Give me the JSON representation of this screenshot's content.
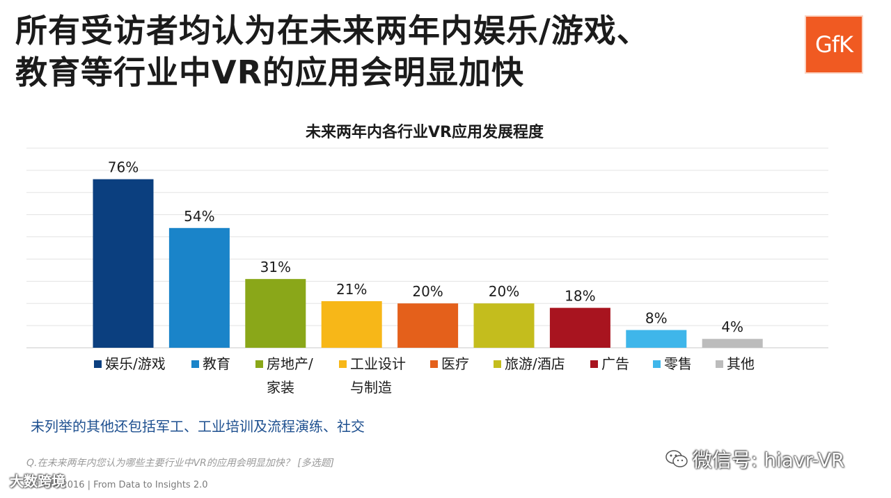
{
  "headline": {
    "line1": "所有受访者均认为在未来两年内娱乐/游戏、",
    "line2": "教育等行业中VR的应用会明显加快"
  },
  "logo": {
    "text": "GfK",
    "color": "#f05a22"
  },
  "chart_data": {
    "type": "bar",
    "title": "未来两年内各行业VR应用发展程度",
    "categories": [
      "娱乐/游戏",
      "教育",
      "房地产/家装",
      "工业设计与制造",
      "医疗",
      "旅游/酒店",
      "广告",
      "零售",
      "其他"
    ],
    "values": [
      76,
      54,
      31,
      21,
      20,
      20,
      18,
      8,
      4
    ],
    "value_labels": [
      "76%",
      "54%",
      "31%",
      "21%",
      "20%",
      "20%",
      "18%",
      "8%",
      "4%"
    ],
    "colors": [
      "#0b3f7f",
      "#1a84c9",
      "#8aa719",
      "#f7b718",
      "#e4601b",
      "#c4bd1d",
      "#a8141f",
      "#3fb6ea",
      "#bcbcbc"
    ],
    "ylim": [
      0,
      90
    ],
    "grid": true,
    "legend": [
      {
        "line1": "娱乐/游戏",
        "line2": ""
      },
      {
        "line1": "教育",
        "line2": ""
      },
      {
        "line1": "房地产/",
        "line2": "家装"
      },
      {
        "line1": "工业设计",
        "line2": "与制造"
      },
      {
        "line1": "医疗",
        "line2": ""
      },
      {
        "line1": "旅游/酒店",
        "line2": ""
      },
      {
        "line1": "广告",
        "line2": ""
      },
      {
        "line1": "零售",
        "line2": ""
      },
      {
        "line1": "其他",
        "line2": ""
      }
    ],
    "legend_position": "bottom"
  },
  "note": "未列举的其他还包括军工、工业培训及流程演练、社交",
  "question": "Q.在未来两年内您认为哪些主要行业中VR的应用会明显加快？ [多选题]",
  "copyright": "© GfK 2016 | From Data to Insights 2.0",
  "watermarks": {
    "left": "大数跨境",
    "right": "微信号: hiavr-VR"
  }
}
